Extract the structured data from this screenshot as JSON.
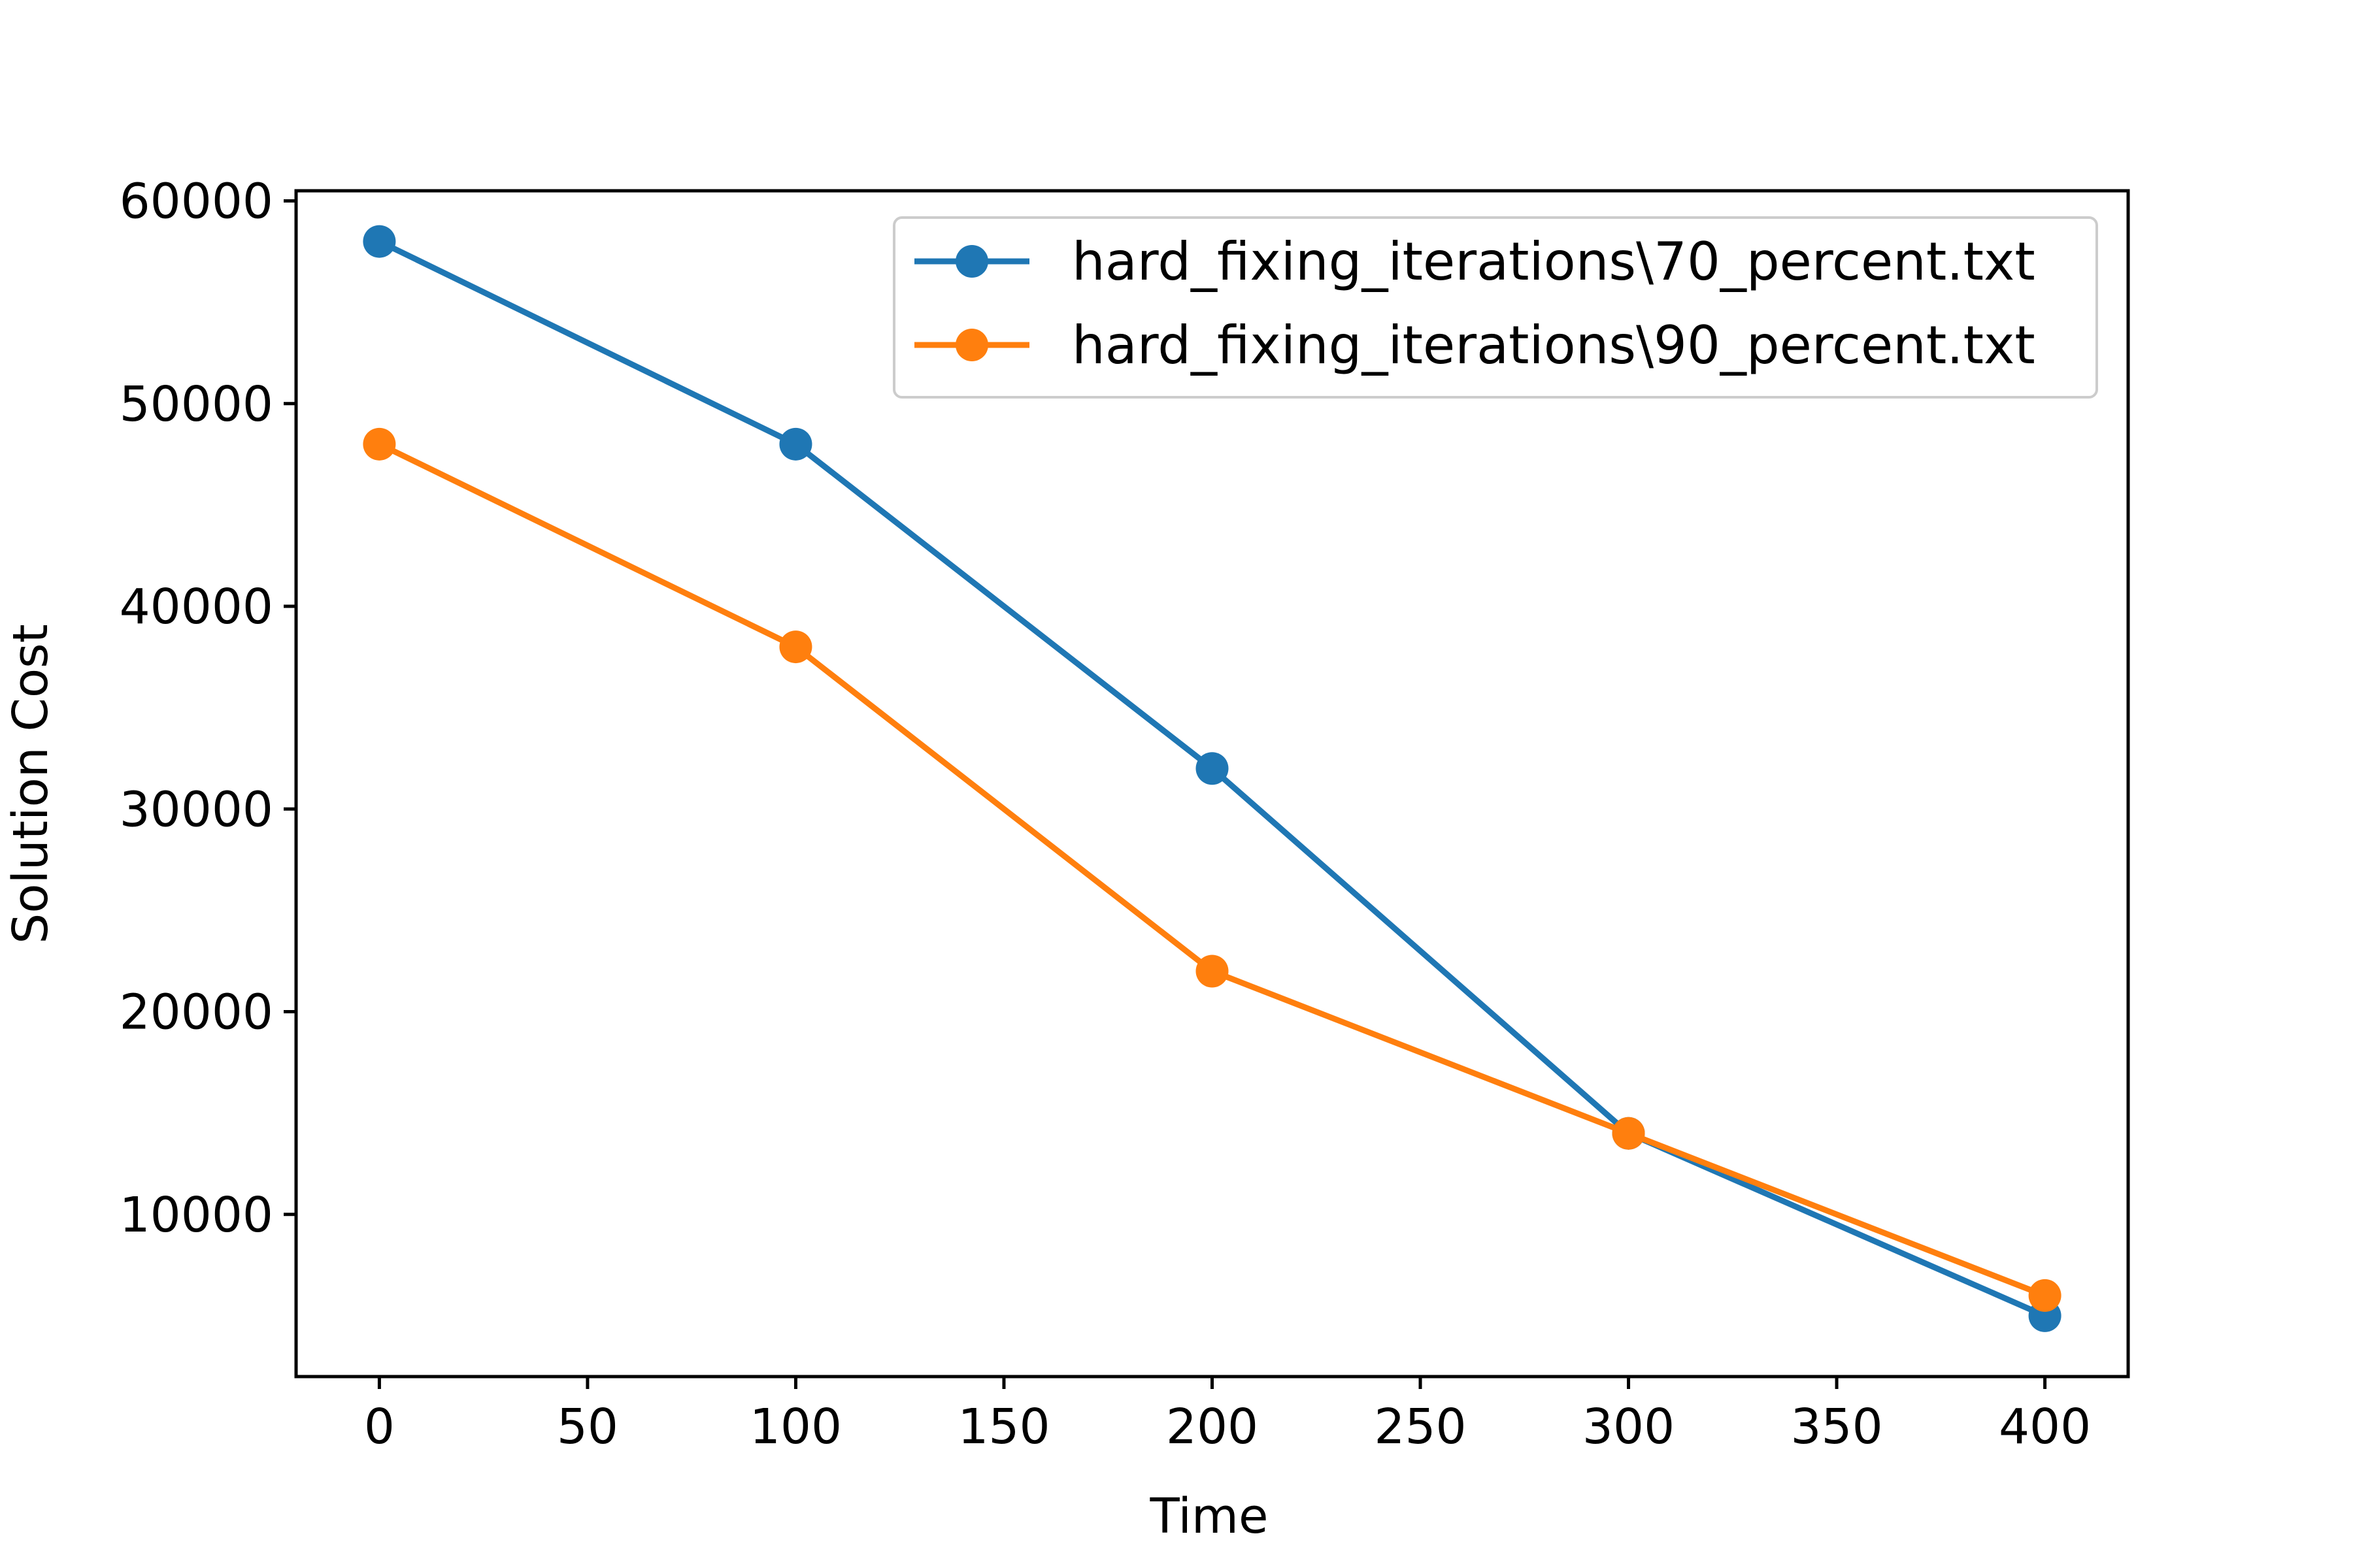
{
  "chart_data": {
    "type": "line",
    "title": "",
    "xlabel": "Time",
    "ylabel": "Solution Cost",
    "x": [
      0,
      100,
      200,
      300,
      400
    ],
    "xlim": [
      -20,
      420
    ],
    "ylim": [
      2000,
      60500
    ],
    "xticks": [
      0,
      50,
      100,
      150,
      200,
      250,
      300,
      350,
      400
    ],
    "yticks": [
      10000,
      20000,
      30000,
      40000,
      50000,
      60000
    ],
    "grid": false,
    "legend_position": "upper right",
    "series": [
      {
        "name": "hard_fixing_iterations\\70_percent.txt",
        "color": "#1f77b4",
        "marker": "circle",
        "values": [
          58000,
          48000,
          32000,
          14000,
          5000
        ]
      },
      {
        "name": "hard_fixing_iterations\\90_percent.txt",
        "color": "#ff7f0e",
        "marker": "circle",
        "values": [
          48000,
          38000,
          22000,
          14000,
          6000
        ]
      }
    ]
  }
}
